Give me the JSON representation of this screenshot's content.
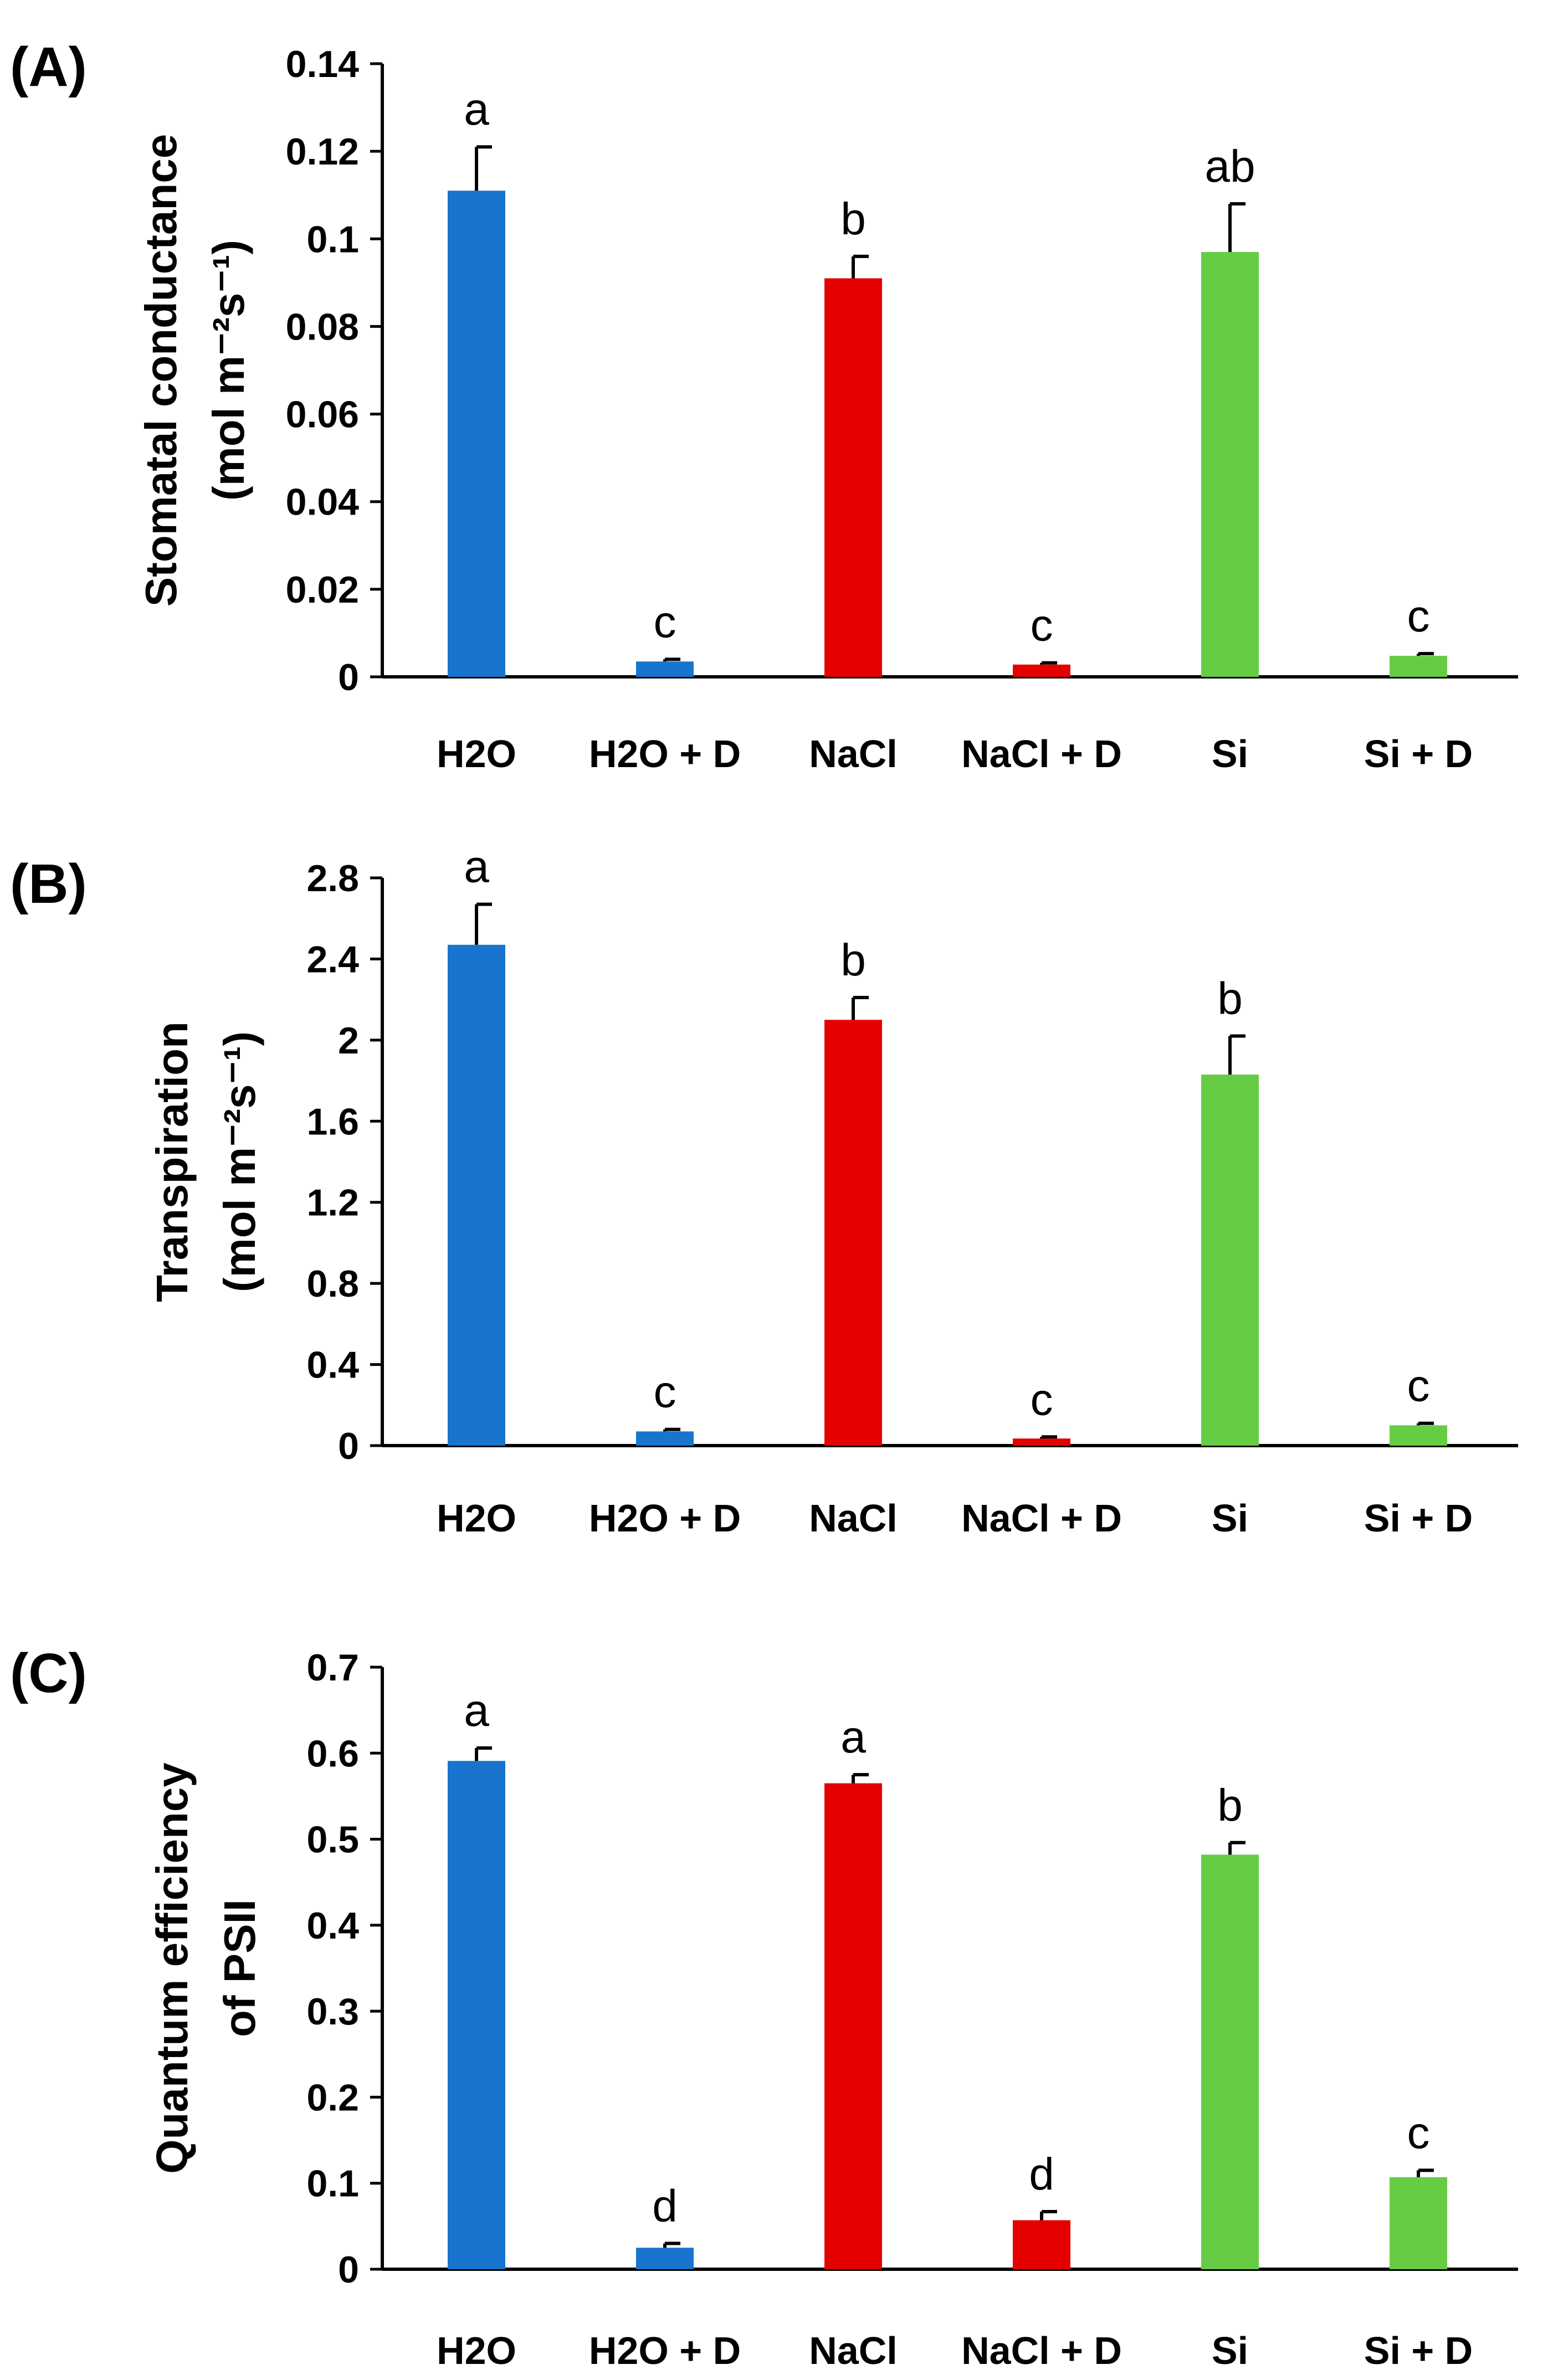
{
  "chart_data": [
    {
      "panel": "(A)",
      "type": "bar",
      "categories": [
        "H2O",
        "H2O + D",
        "NaCl",
        "NaCl + D",
        "Si",
        "Si + D"
      ],
      "values": [
        0.111,
        0.0035,
        0.091,
        0.0028,
        0.097,
        0.0048
      ],
      "errors": [
        0.01,
        0.0005,
        0.005,
        0.0004,
        0.011,
        0.0005
      ],
      "significance": [
        "a",
        "c",
        "b",
        "c",
        "ab",
        "c"
      ],
      "colors": [
        "#1874cd",
        "#1874cd",
        "#e50000",
        "#e50000",
        "#66cc44",
        "#66cc44"
      ],
      "ylabel_line1": "Stomatal conductance",
      "ylabel_line2": "(mol m⁻²s⁻¹)",
      "ylim": [
        0,
        0.14
      ],
      "yticks": [
        0,
        0.02,
        0.04,
        0.06,
        0.08,
        0.1,
        0.12,
        0.14
      ],
      "ytick_labels": [
        "0",
        "0.02",
        "0.04",
        "0.06",
        "0.08",
        "0.1",
        "0.12",
        "0.14"
      ]
    },
    {
      "panel": "(B)",
      "type": "bar",
      "categories": [
        "H2O",
        "H2O + D",
        "NaCl",
        "NaCl + D",
        "Si",
        "Si + D"
      ],
      "values": [
        2.47,
        0.07,
        2.1,
        0.035,
        1.83,
        0.1
      ],
      "errors": [
        0.2,
        0.01,
        0.11,
        0.008,
        0.19,
        0.01
      ],
      "significance": [
        "a",
        "c",
        "b",
        "c",
        "b",
        "c"
      ],
      "colors": [
        "#1874cd",
        "#1874cd",
        "#e50000",
        "#e50000",
        "#66cc44",
        "#66cc44"
      ],
      "ylabel_line1": "Transpiration",
      "ylabel_line2": "(mol m⁻²s⁻¹)",
      "ylim": [
        0,
        2.8
      ],
      "yticks": [
        0,
        0.4,
        0.8,
        1.2,
        1.6,
        2,
        2.4,
        2.8
      ],
      "ytick_labels": [
        "0",
        "0.4",
        "0.8",
        "1.2",
        "1.6",
        "2",
        "2.4",
        "2.8"
      ]
    },
    {
      "panel": "(C)",
      "type": "bar",
      "categories": [
        "H2O",
        "H2O + D",
        "NaCl",
        "NaCl + D",
        "Si",
        "Si + D"
      ],
      "values": [
        0.591,
        0.025,
        0.565,
        0.057,
        0.482,
        0.107
      ],
      "errors": [
        0.015,
        0.005,
        0.01,
        0.01,
        0.014,
        0.008
      ],
      "significance": [
        "a",
        "d",
        "a",
        "d",
        "b",
        "c"
      ],
      "colors": [
        "#1874cd",
        "#1874cd",
        "#e50000",
        "#e50000",
        "#66cc44",
        "#66cc44"
      ],
      "ylabel_line1": "Quantum efficiency",
      "ylabel_line2": "of PSII",
      "ylim": [
        0,
        0.7
      ],
      "yticks": [
        0,
        0.1,
        0.2,
        0.3,
        0.4,
        0.5,
        0.6,
        0.7
      ],
      "ytick_labels": [
        "0",
        "0.1",
        "0.2",
        "0.3",
        "0.4",
        "0.5",
        "0.6",
        "0.7"
      ]
    }
  ]
}
